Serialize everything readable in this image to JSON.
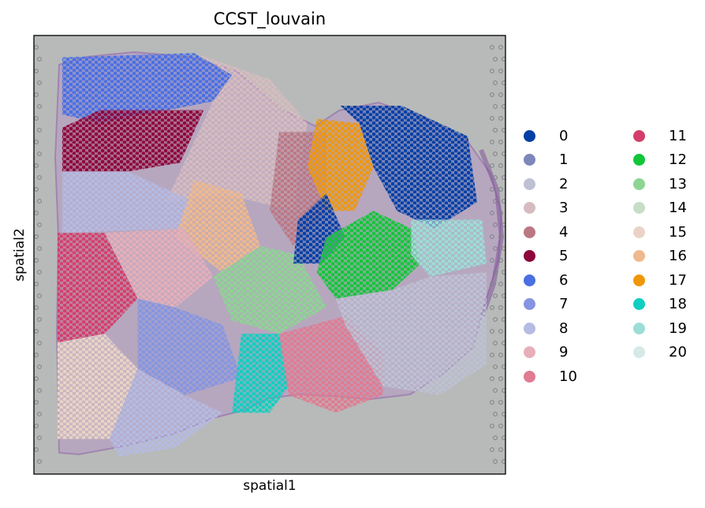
{
  "chart_data": {
    "type": "scatter",
    "title": "CCST_louvain",
    "xlabel": "spatial1",
    "ylabel": "spatial2",
    "grid": false,
    "background": "H&E tissue image (spatial transcriptomics spots)",
    "legend_position": "right",
    "legend_columns": 2,
    "clusters": [
      {
        "name": "0",
        "color": "#023fa5"
      },
      {
        "name": "1",
        "color": "#7d87b9"
      },
      {
        "name": "2",
        "color": "#bec1d4"
      },
      {
        "name": "3",
        "color": "#d6bcc0"
      },
      {
        "name": "4",
        "color": "#bb7784"
      },
      {
        "name": "5",
        "color": "#8e063b"
      },
      {
        "name": "6",
        "color": "#4a6fe3"
      },
      {
        "name": "7",
        "color": "#8595e1"
      },
      {
        "name": "8",
        "color": "#b5bbe3"
      },
      {
        "name": "9",
        "color": "#e6afb9"
      },
      {
        "name": "10",
        "color": "#e07b91"
      },
      {
        "name": "11",
        "color": "#d33f6a"
      },
      {
        "name": "12",
        "color": "#11c638"
      },
      {
        "name": "13",
        "color": "#8dd593"
      },
      {
        "name": "14",
        "color": "#c6dec7"
      },
      {
        "name": "15",
        "color": "#ead3c6"
      },
      {
        "name": "16",
        "color": "#f0b98d"
      },
      {
        "name": "17",
        "color": "#ef9708"
      },
      {
        "name": "18",
        "color": "#0fcfc0"
      },
      {
        "name": "19",
        "color": "#9cded6"
      },
      {
        "name": "20",
        "color": "#d5eae7"
      }
    ],
    "regions": [
      {
        "cluster": "6",
        "polygon": [
          [
            0.06,
            0.05
          ],
          [
            0.34,
            0.04
          ],
          [
            0.42,
            0.09
          ],
          [
            0.38,
            0.15
          ],
          [
            0.14,
            0.2
          ],
          [
            0.06,
            0.18
          ]
        ]
      },
      {
        "cluster": "3",
        "polygon": [
          [
            0.34,
            0.04
          ],
          [
            0.5,
            0.1
          ],
          [
            0.58,
            0.2
          ],
          [
            0.55,
            0.4
          ],
          [
            0.4,
            0.36
          ],
          [
            0.28,
            0.38
          ],
          [
            0.38,
            0.15
          ],
          [
            0.42,
            0.09
          ]
        ]
      },
      {
        "cluster": "5",
        "polygon": [
          [
            0.06,
            0.21
          ],
          [
            0.14,
            0.17
          ],
          [
            0.36,
            0.17
          ],
          [
            0.31,
            0.29
          ],
          [
            0.2,
            0.31
          ],
          [
            0.06,
            0.31
          ]
        ]
      },
      {
        "cluster": "8",
        "polygon": [
          [
            0.06,
            0.31
          ],
          [
            0.2,
            0.31
          ],
          [
            0.34,
            0.38
          ],
          [
            0.32,
            0.44
          ],
          [
            0.06,
            0.45
          ]
        ]
      },
      {
        "cluster": "16",
        "polygon": [
          [
            0.34,
            0.33
          ],
          [
            0.44,
            0.36
          ],
          [
            0.48,
            0.48
          ],
          [
            0.4,
            0.54
          ],
          [
            0.3,
            0.46
          ]
        ]
      },
      {
        "cluster": "11",
        "polygon": [
          [
            0.05,
            0.45
          ],
          [
            0.15,
            0.45
          ],
          [
            0.22,
            0.6
          ],
          [
            0.15,
            0.68
          ],
          [
            0.05,
            0.7
          ]
        ]
      },
      {
        "cluster": "9",
        "polygon": [
          [
            0.15,
            0.45
          ],
          [
            0.32,
            0.44
          ],
          [
            0.38,
            0.55
          ],
          [
            0.3,
            0.62
          ],
          [
            0.22,
            0.6
          ]
        ]
      },
      {
        "cluster": "13",
        "polygon": [
          [
            0.38,
            0.55
          ],
          [
            0.48,
            0.48
          ],
          [
            0.56,
            0.5
          ],
          [
            0.62,
            0.62
          ],
          [
            0.52,
            0.68
          ],
          [
            0.42,
            0.65
          ]
        ]
      },
      {
        "cluster": "7",
        "polygon": [
          [
            0.22,
            0.6
          ],
          [
            0.3,
            0.62
          ],
          [
            0.4,
            0.66
          ],
          [
            0.44,
            0.78
          ],
          [
            0.32,
            0.82
          ],
          [
            0.22,
            0.76
          ]
        ]
      },
      {
        "cluster": "15",
        "polygon": [
          [
            0.05,
            0.7
          ],
          [
            0.15,
            0.68
          ],
          [
            0.22,
            0.76
          ],
          [
            0.16,
            0.92
          ],
          [
            0.05,
            0.92
          ]
        ]
      },
      {
        "cluster": "8",
        "polygon": [
          [
            0.16,
            0.92
          ],
          [
            0.22,
            0.76
          ],
          [
            0.32,
            0.82
          ],
          [
            0.4,
            0.86
          ],
          [
            0.3,
            0.94
          ],
          [
            0.18,
            0.96
          ]
        ]
      },
      {
        "cluster": "18",
        "polygon": [
          [
            0.44,
            0.68
          ],
          [
            0.52,
            0.68
          ],
          [
            0.54,
            0.8
          ],
          [
            0.5,
            0.86
          ],
          [
            0.42,
            0.86
          ]
        ]
      },
      {
        "cluster": "10",
        "polygon": [
          [
            0.52,
            0.68
          ],
          [
            0.66,
            0.64
          ],
          [
            0.74,
            0.72
          ],
          [
            0.74,
            0.82
          ],
          [
            0.64,
            0.86
          ],
          [
            0.54,
            0.82
          ]
        ]
      },
      {
        "cluster": "4",
        "polygon": [
          [
            0.52,
            0.22
          ],
          [
            0.62,
            0.22
          ],
          [
            0.62,
            0.4
          ],
          [
            0.55,
            0.48
          ],
          [
            0.5,
            0.4
          ]
        ]
      },
      {
        "cluster": "17",
        "polygon": [
          [
            0.6,
            0.19
          ],
          [
            0.69,
            0.2
          ],
          [
            0.72,
            0.3
          ],
          [
            0.68,
            0.4
          ],
          [
            0.62,
            0.4
          ],
          [
            0.58,
            0.3
          ]
        ]
      },
      {
        "cluster": "0",
        "polygon": [
          [
            0.65,
            0.16
          ],
          [
            0.78,
            0.16
          ],
          [
            0.92,
            0.23
          ],
          [
            0.94,
            0.38
          ],
          [
            0.85,
            0.44
          ],
          [
            0.77,
            0.4
          ],
          [
            0.72,
            0.3
          ],
          [
            0.69,
            0.2
          ]
        ]
      },
      {
        "cluster": "0",
        "polygon": [
          [
            0.56,
            0.42
          ],
          [
            0.62,
            0.36
          ],
          [
            0.66,
            0.46
          ],
          [
            0.61,
            0.52
          ],
          [
            0.55,
            0.52
          ]
        ]
      },
      {
        "cluster": "12",
        "polygon": [
          [
            0.62,
            0.46
          ],
          [
            0.72,
            0.4
          ],
          [
            0.8,
            0.44
          ],
          [
            0.82,
            0.52
          ],
          [
            0.76,
            0.58
          ],
          [
            0.64,
            0.6
          ],
          [
            0.6,
            0.54
          ]
        ]
      },
      {
        "cluster": "19",
        "polygon": [
          [
            0.8,
            0.42
          ],
          [
            0.95,
            0.42
          ],
          [
            0.96,
            0.52
          ],
          [
            0.84,
            0.55
          ],
          [
            0.8,
            0.5
          ]
        ]
      },
      {
        "cluster": "2",
        "polygon": [
          [
            0.64,
            0.6
          ],
          [
            0.76,
            0.58
          ],
          [
            0.84,
            0.55
          ],
          [
            0.96,
            0.54
          ],
          [
            0.96,
            0.75
          ],
          [
            0.86,
            0.82
          ],
          [
            0.74,
            0.8
          ],
          [
            0.66,
            0.66
          ]
        ]
      }
    ]
  }
}
